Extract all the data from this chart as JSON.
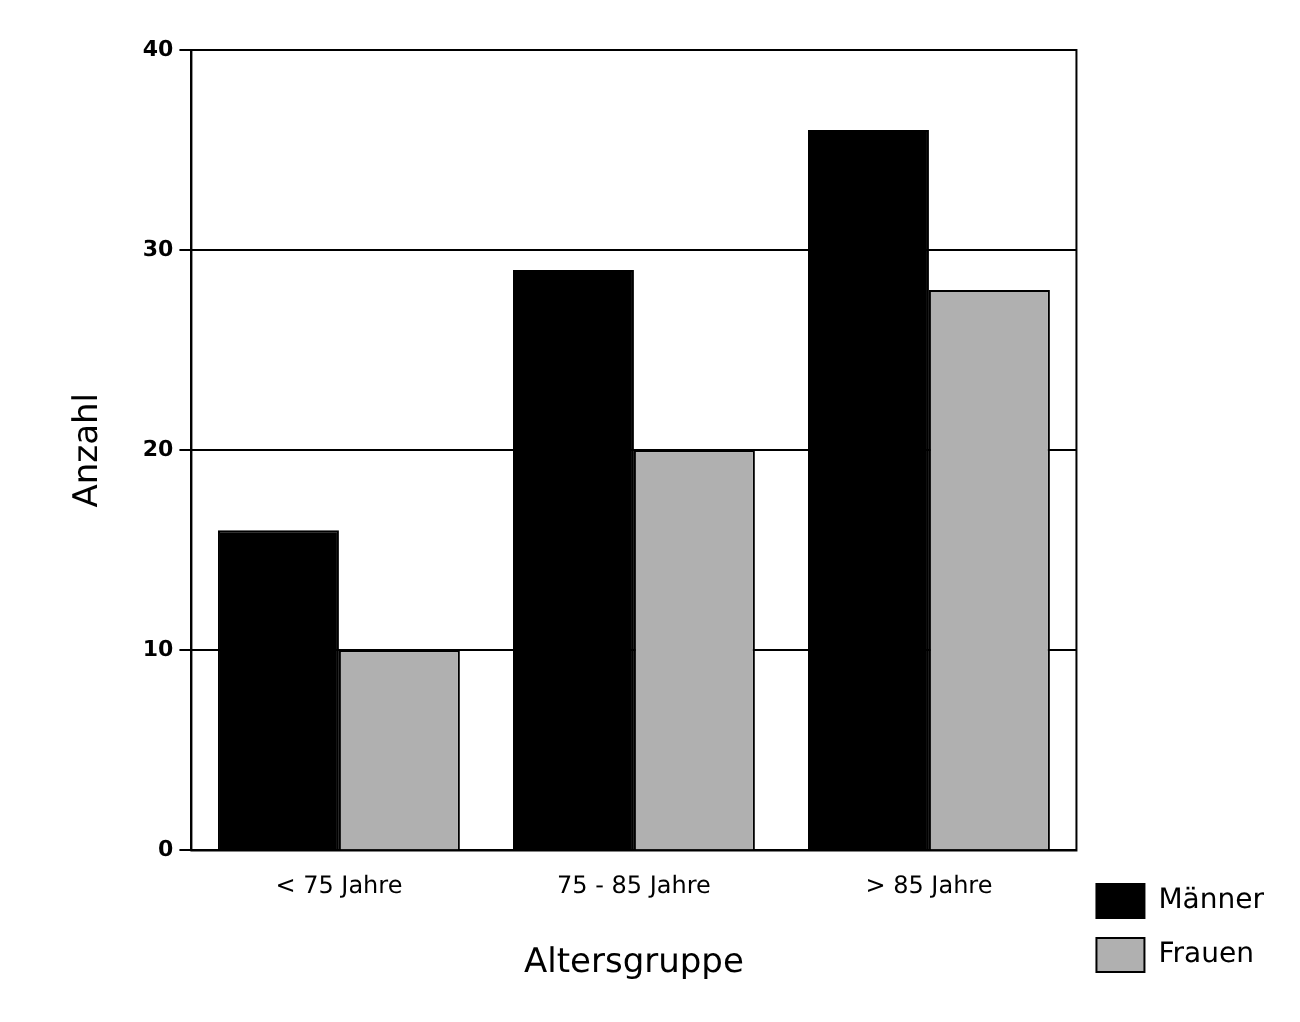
{
  "chart_data": {
    "type": "bar",
    "xlabel": "Altersgruppe",
    "ylabel": "Anzahl",
    "categories": [
      "< 75 Jahre",
      "75 - 85 Jahre",
      "> 85 Jahre"
    ],
    "series": [
      {
        "name": "Männer",
        "color": "#000000",
        "values": [
          16,
          29,
          36
        ]
      },
      {
        "name": "Frauen",
        "color": "#b0b0b0",
        "values": [
          10,
          20,
          28
        ]
      }
    ],
    "ylim": [
      0,
      40
    ],
    "yticks": [
      0,
      10,
      20,
      30,
      40
    ],
    "grid": "y",
    "legend": "bottom right"
  }
}
